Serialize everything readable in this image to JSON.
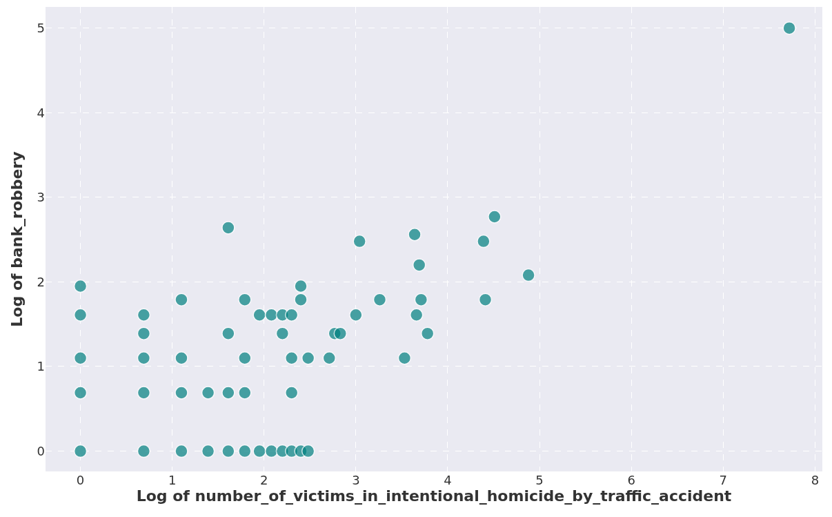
{
  "chart_data": {
    "type": "scatter",
    "xlabel": "Log of number_of_victims_in_intentional_homicide_by_traffic_accident",
    "ylabel": "Log of bank_robbery",
    "series": [
      {
        "color": "#008080",
        "x": [
          0,
          0.69,
          1.1,
          1.39,
          1.61,
          1.79,
          1.95,
          2.08,
          2.2,
          2.3,
          2.4,
          2.48,
          0,
          0.69,
          1.1,
          1.39,
          1.61,
          1.79,
          2.3,
          0,
          0.69,
          1.1,
          1.79,
          2.3,
          2.48,
          2.71,
          3.53,
          0.69,
          1.61,
          2.2,
          2.77,
          2.83,
          3.78,
          0,
          0.69,
          1.95,
          2.08,
          2.2,
          2.3,
          3.0,
          3.66,
          1.1,
          1.79,
          2.4,
          3.26,
          3.71,
          4.41,
          0,
          2.4,
          4.88,
          3.69,
          3.04,
          4.39,
          3.64,
          1.61,
          4.51,
          7.72
        ],
        "values": [
          0,
          0,
          0,
          0,
          0,
          0,
          0,
          0,
          0,
          0,
          0,
          0,
          0.69,
          0.69,
          0.69,
          0.69,
          0.69,
          0.69,
          0.69,
          1.1,
          1.1,
          1.1,
          1.1,
          1.1,
          1.1,
          1.1,
          1.1,
          1.39,
          1.39,
          1.39,
          1.39,
          1.39,
          1.39,
          1.61,
          1.61,
          1.61,
          1.61,
          1.61,
          1.61,
          1.61,
          1.61,
          1.79,
          1.79,
          1.79,
          1.79,
          1.79,
          1.79,
          1.95,
          1.95,
          2.08,
          2.2,
          2.48,
          2.48,
          2.56,
          2.64,
          2.77,
          5.0
        ]
      }
    ],
    "xlim": [
      -0.38,
      8.08
    ],
    "ylim": [
      -0.24,
      5.25
    ],
    "xticks": [
      0,
      1,
      2,
      3,
      4,
      5,
      6,
      7,
      8
    ],
    "yticks": [
      0,
      1,
      2,
      3,
      4,
      5
    ],
    "grid": true,
    "marker": "circle"
  }
}
